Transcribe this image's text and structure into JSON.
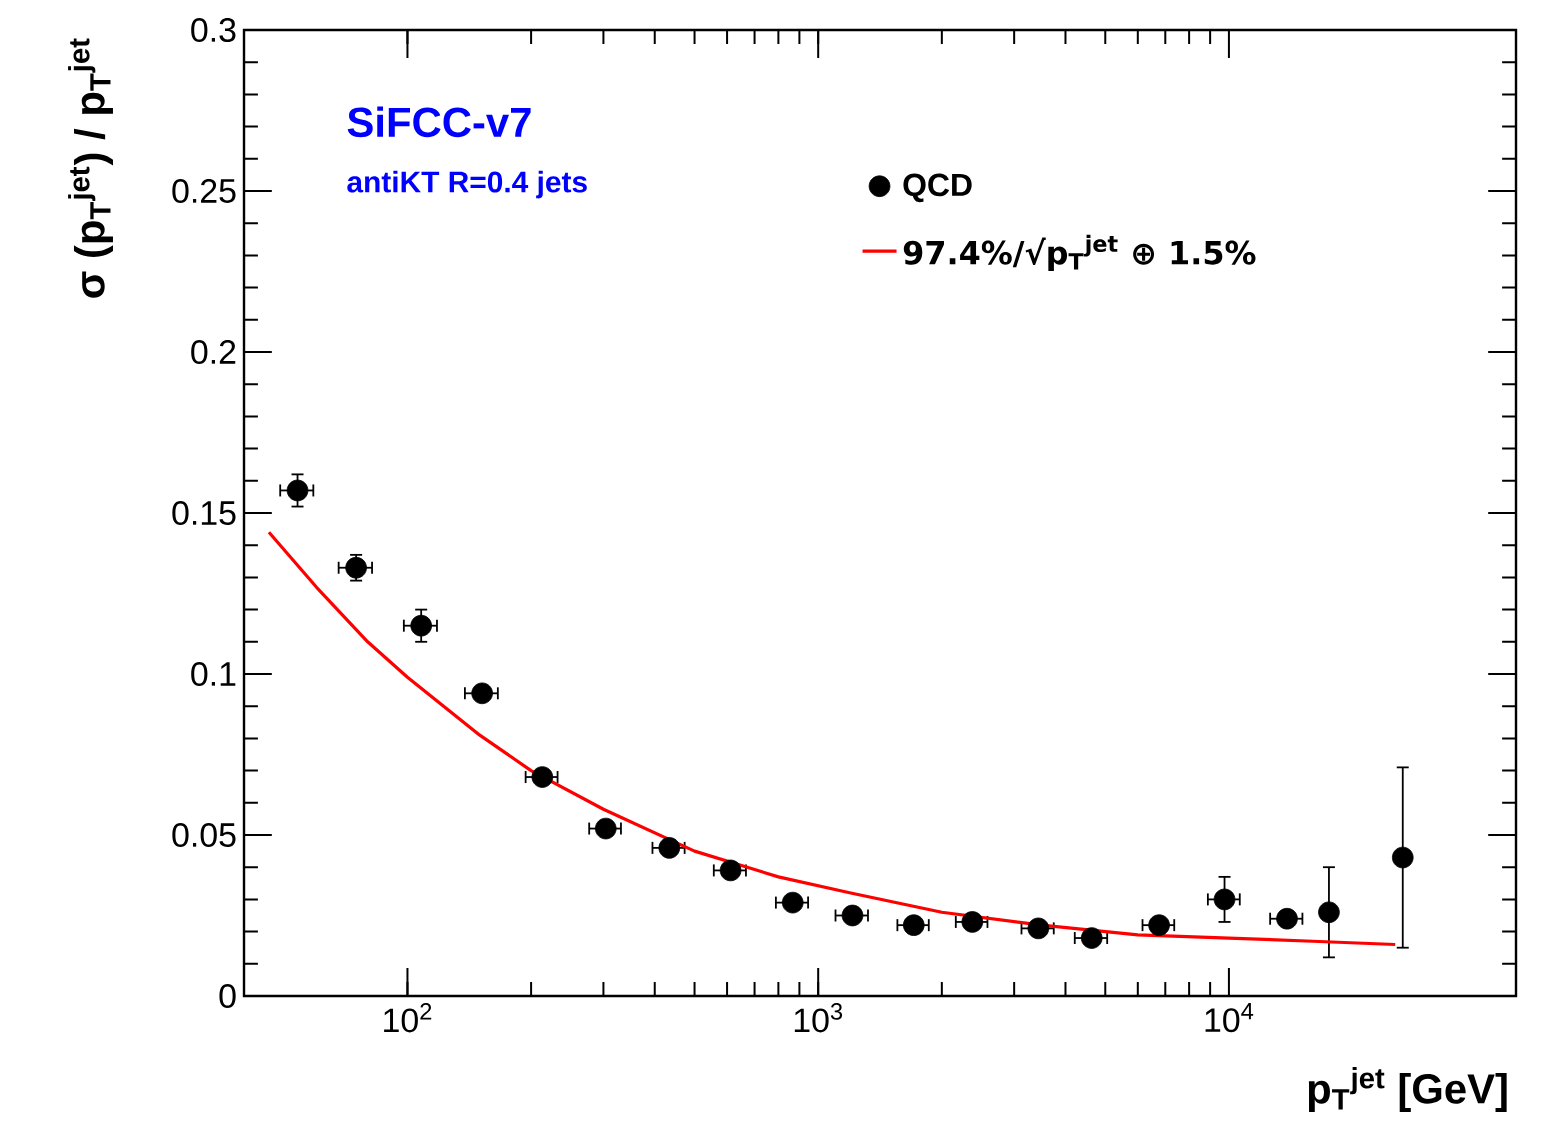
{
  "chart_data": {
    "type": "scatter",
    "xlabel": "p$_{T}$$^{jet}$ [GeV]",
    "ylabel": "σ (p$_{T}$$^{jet}$) / p$_{T}$$^{jet}$",
    "annotations": [
      "SiFCC-v7",
      "antiKT R=0.4 jets"
    ],
    "log": "x",
    "xlim": [
      40,
      50000
    ],
    "ylim": [
      0,
      0.3
    ],
    "xticks": [
      {
        "value": 100,
        "label": "10$^{2}$"
      },
      {
        "value": 1000,
        "label": "10$^{3}$"
      },
      {
        "value": 10000,
        "label": "10$^{4}$"
      }
    ],
    "yticks": [
      0,
      0.05,
      0.1,
      0.15,
      0.2,
      0.25,
      0.3
    ],
    "legend": "top right",
    "series": [
      {
        "name": "QCD",
        "type": "scatter",
        "marker": "circle",
        "color": "#000000",
        "x": [
          54,
          75,
          108,
          152,
          213,
          304,
          434,
          612,
          867,
          1212,
          1709,
          2373,
          3436,
          4634,
          6761,
          9757,
          13850,
          17520,
          26500
        ],
        "values": [
          0.157,
          0.133,
          0.115,
          0.094,
          0.068,
          0.052,
          0.046,
          0.039,
          0.029,
          0.025,
          0.022,
          0.023,
          0.021,
          0.018,
          0.022,
          0.03,
          0.024,
          0.026,
          0.043
        ],
        "errors": [
          0.005,
          0.004,
          0.005,
          null,
          null,
          null,
          null,
          null,
          null,
          null,
          null,
          null,
          null,
          null,
          null,
          0.007,
          null,
          0.014,
          0.028
        ],
        "xerrors": [
          5,
          7,
          10,
          14,
          19,
          27,
          39,
          55,
          78,
          110,
          150,
          210,
          310,
          420,
          600,
          870,
          1250,
          null,
          null
        ]
      },
      {
        "name": "97.4%/√p$_{T}$$^{jet}$ ⊕ 1.5%",
        "type": "line",
        "line_style": "solid",
        "color": "#ff0000",
        "x": [
          46,
          60,
          80,
          100,
          150,
          200,
          300,
          500,
          800,
          1200,
          2000,
          3500,
          6000,
          10000,
          16000,
          25400
        ],
        "values": [
          0.144,
          0.127,
          0.11,
          0.099,
          0.081,
          0.07,
          0.058,
          0.045,
          0.037,
          0.032,
          0.026,
          0.022,
          0.019,
          0.018,
          0.017,
          0.016
        ]
      }
    ]
  }
}
